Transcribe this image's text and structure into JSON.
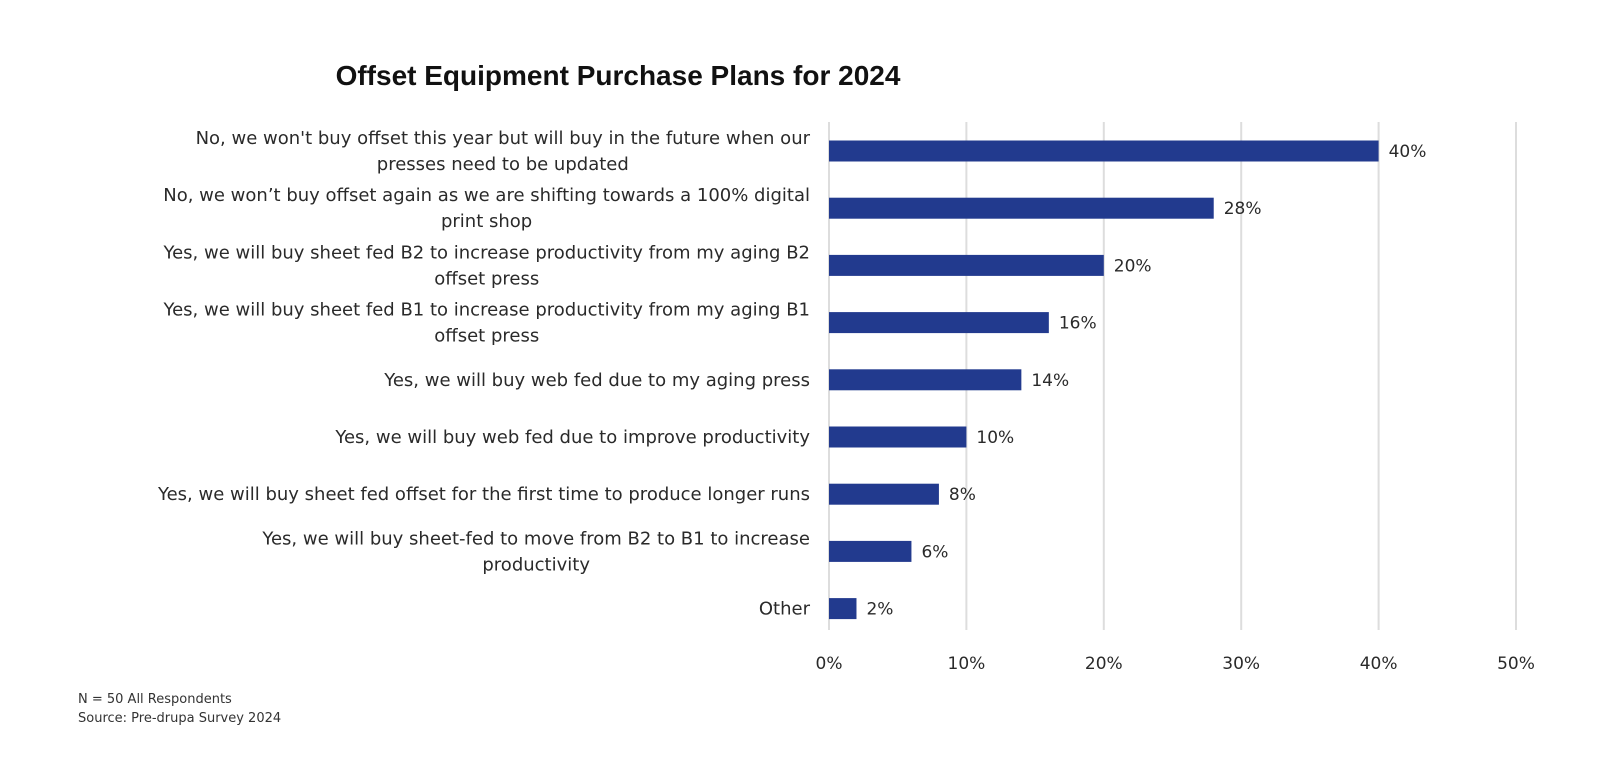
{
  "chart_data": {
    "type": "bar",
    "orientation": "horizontal",
    "title": "Offset Equipment Purchase Plans for 2024",
    "categories": [
      [
        "No, we won't buy offset this year but will buy in the future when our",
        "presses need to be updated"
      ],
      [
        "No, we won’t buy offset again as we are shifting towards a 100% digital",
        "print shop"
      ],
      [
        "Yes, we will buy sheet fed B2 to increase productivity from my aging B2",
        "offset press"
      ],
      [
        "Yes, we will buy sheet fed B1 to increase productivity from my aging B1",
        "offset press"
      ],
      [
        "Yes, we will buy web fed due to my aging press"
      ],
      [
        "Yes, we will buy web fed due to improve productivity"
      ],
      [
        "Yes, we will buy sheet fed offset for the first time to produce longer runs"
      ],
      [
        "Yes, we will buy sheet-fed to move from B2 to B1 to increase",
        "productivity"
      ],
      [
        "Other"
      ]
    ],
    "values": [
      40,
      28,
      20,
      16,
      14,
      10,
      8,
      6,
      2
    ],
    "value_labels": [
      "40%",
      "28%",
      "20%",
      "16%",
      "14%",
      "10%",
      "8%",
      "6%",
      "2%"
    ],
    "xlim": [
      0,
      50
    ],
    "x_ticks": [
      0,
      10,
      20,
      30,
      40,
      50
    ],
    "x_tick_labels": [
      "0%",
      "10%",
      "20%",
      "30%",
      "40%",
      "50%"
    ],
    "grid": "vertical",
    "legend": "none",
    "bar_color": "#223a8e",
    "grid_color": "#dddddd"
  },
  "footnotes": {
    "sample": "N = 50 All Respondents",
    "source": "Source: Pre-drupa Survey 2024"
  }
}
